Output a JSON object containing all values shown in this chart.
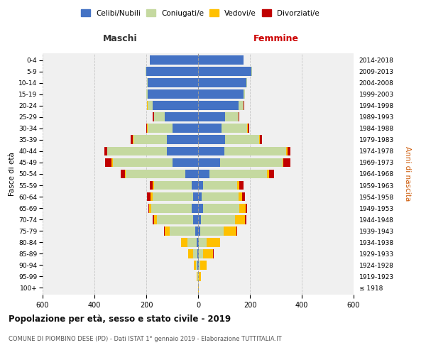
{
  "age_groups": [
    "100+",
    "95-99",
    "90-94",
    "85-89",
    "80-84",
    "75-79",
    "70-74",
    "65-69",
    "60-64",
    "55-59",
    "50-54",
    "45-49",
    "40-44",
    "35-39",
    "30-34",
    "25-29",
    "20-24",
    "15-19",
    "10-14",
    "5-9",
    "0-4"
  ],
  "birth_years": [
    "≤ 1918",
    "1919-1923",
    "1924-1928",
    "1929-1933",
    "1934-1938",
    "1939-1943",
    "1944-1948",
    "1949-1953",
    "1954-1958",
    "1959-1963",
    "1964-1968",
    "1969-1973",
    "1974-1978",
    "1979-1983",
    "1984-1988",
    "1989-1993",
    "1994-1998",
    "1999-2003",
    "2004-2008",
    "2009-2013",
    "2014-2018"
  ],
  "maschi_celibi": [
    0,
    1,
    2,
    3,
    5,
    10,
    20,
    25,
    20,
    25,
    50,
    100,
    120,
    120,
    100,
    130,
    175,
    195,
    195,
    200,
    185
  ],
  "maschi_coniugati": [
    1,
    3,
    5,
    15,
    35,
    100,
    140,
    155,
    155,
    145,
    230,
    230,
    230,
    130,
    95,
    40,
    20,
    5,
    3,
    2,
    1
  ],
  "maschi_vedovi": [
    0,
    2,
    10,
    20,
    25,
    20,
    10,
    8,
    8,
    5,
    3,
    3,
    2,
    2,
    1,
    1,
    1,
    0,
    0,
    0,
    0
  ],
  "maschi_divorziati": [
    0,
    0,
    0,
    0,
    1,
    2,
    5,
    5,
    15,
    10,
    15,
    25,
    10,
    8,
    5,
    3,
    1,
    0,
    0,
    0,
    0
  ],
  "femmine_celibi": [
    0,
    1,
    2,
    3,
    4,
    8,
    12,
    18,
    15,
    20,
    45,
    85,
    100,
    105,
    90,
    105,
    155,
    175,
    185,
    205,
    175
  ],
  "femmine_coniugati": [
    0,
    2,
    5,
    15,
    30,
    90,
    130,
    140,
    140,
    130,
    220,
    240,
    240,
    130,
    100,
    50,
    20,
    5,
    3,
    2,
    1
  ],
  "femmine_vedovi": [
    2,
    8,
    25,
    40,
    50,
    50,
    40,
    25,
    15,
    10,
    8,
    5,
    5,
    3,
    2,
    1,
    1,
    0,
    0,
    0,
    0
  ],
  "femmine_divorziati": [
    0,
    0,
    0,
    1,
    1,
    2,
    3,
    5,
    10,
    15,
    20,
    25,
    10,
    8,
    4,
    2,
    1,
    0,
    0,
    0,
    0
  ],
  "color_celibi": "#4472c4",
  "color_coniugati": "#c5d9a0",
  "color_vedovi": "#ffc000",
  "color_divorziati": "#c00000",
  "title": "Popolazione per età, sesso e stato civile - 2019",
  "subtitle": "COMUNE DI PIOMBINO DESE (PD) - Dati ISTAT 1° gennaio 2019 - Elaborazione TUTTITALIA.IT",
  "ylabel_left": "Fasce di età",
  "ylabel_right": "Anni di nascita",
  "xlabel_left": "Maschi",
  "xlabel_right": "Femmine",
  "xlim": 600,
  "legend_labels": [
    "Celibi/Nubili",
    "Coniugati/e",
    "Vedovi/e",
    "Divorziati/e"
  ],
  "background_color": "#ffffff"
}
